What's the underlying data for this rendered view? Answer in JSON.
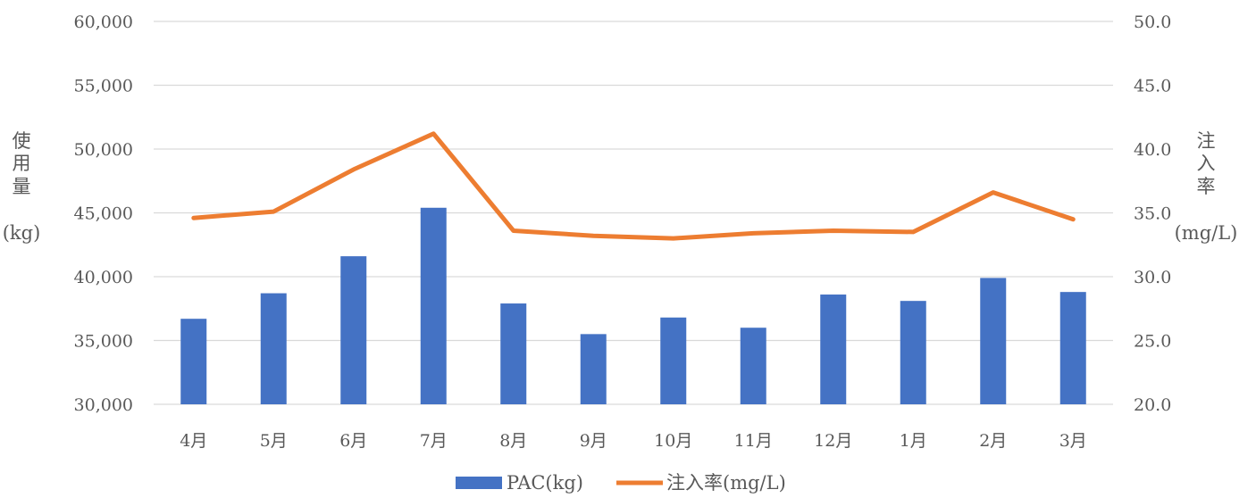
{
  "chart_data": {
    "type": "bar",
    "categories": [
      "4月",
      "5月",
      "6月",
      "7月",
      "8月",
      "9月",
      "10月",
      "11月",
      "12月",
      "1月",
      "2月",
      "3月"
    ],
    "series": [
      {
        "name": "PAC(kg)",
        "type": "bar",
        "axis": "left",
        "color": "#4472C4",
        "values": [
          36700,
          38700,
          41600,
          45400,
          37900,
          35500,
          36800,
          36000,
          38600,
          38100,
          39900,
          38800
        ]
      },
      {
        "name": "注入率(mg/L)",
        "type": "line",
        "axis": "right",
        "color": "#ED7D31",
        "values": [
          34.6,
          35.1,
          38.4,
          41.2,
          33.6,
          33.2,
          33.0,
          33.4,
          33.6,
          33.5,
          36.6,
          34.5
        ]
      }
    ],
    "y_left": {
      "label": "使用量(kg)",
      "label_lines": [
        "使",
        "用",
        "量",
        "(kg)"
      ],
      "ylim": [
        30000,
        60000
      ],
      "ticks": [
        "30,000",
        "35,000",
        "40,000",
        "45,000",
        "50,000",
        "55,000",
        "60,000"
      ]
    },
    "y_right": {
      "label": "注入率(mg/L)",
      "label_lines": [
        "注",
        "入",
        "率",
        "(mg/L)"
      ],
      "ylim": [
        20.0,
        50.0
      ],
      "ticks": [
        "20.0",
        "25.0",
        "30.0",
        "35.0",
        "40.0",
        "45.0",
        "50.0"
      ]
    },
    "grid": true,
    "legend_position": "bottom"
  }
}
